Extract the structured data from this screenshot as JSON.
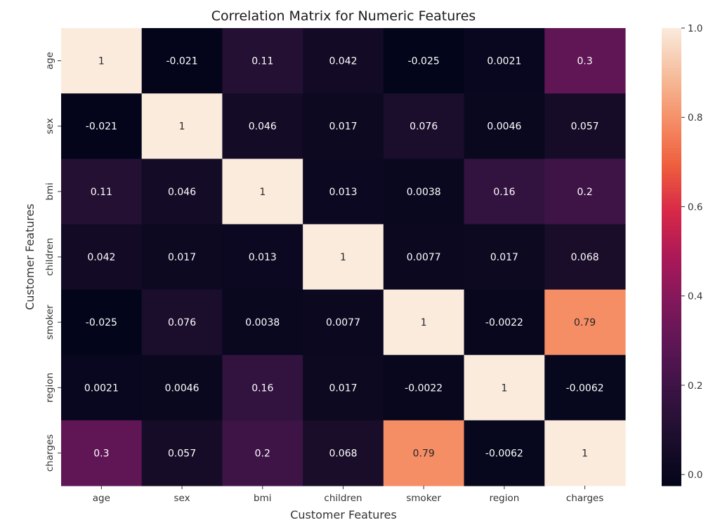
{
  "chart_data": {
    "type": "heatmap",
    "title": "Correlation Matrix for Numeric Features",
    "xlabel": "Customer Features",
    "ylabel": "Customer Features",
    "x_categories": [
      "age",
      "sex",
      "bmi",
      "children",
      "smoker",
      "region",
      "charges"
    ],
    "y_categories": [
      "age",
      "sex",
      "bmi",
      "children",
      "smoker",
      "region",
      "charges"
    ],
    "values": [
      [
        1,
        -0.021,
        0.11,
        0.042,
        -0.025,
        0.0021,
        0.3
      ],
      [
        -0.021,
        1,
        0.046,
        0.017,
        0.076,
        0.0046,
        0.057
      ],
      [
        0.11,
        0.046,
        1,
        0.013,
        0.0038,
        0.16,
        0.2
      ],
      [
        0.042,
        0.017,
        0.013,
        1,
        0.0077,
        0.017,
        0.068
      ],
      [
        -0.025,
        0.076,
        0.0038,
        0.0077,
        1,
        -0.0022,
        0.79
      ],
      [
        0.0021,
        0.0046,
        0.16,
        0.017,
        -0.0022,
        1,
        -0.0062
      ],
      [
        0.3,
        0.057,
        0.2,
        0.068,
        0.79,
        -0.0062,
        1
      ]
    ],
    "annotations": [
      [
        "1",
        "-0.021",
        "0.11",
        "0.042",
        "-0.025",
        "0.0021",
        "0.3"
      ],
      [
        "-0.021",
        "1",
        "0.046",
        "0.017",
        "0.076",
        "0.0046",
        "0.057"
      ],
      [
        "0.11",
        "0.046",
        "1",
        "0.013",
        "0.0038",
        "0.16",
        "0.2"
      ],
      [
        "0.042",
        "0.017",
        "0.013",
        "1",
        "0.0077",
        "0.017",
        "0.068"
      ],
      [
        "-0.025",
        "0.076",
        "0.0038",
        "0.0077",
        "1",
        "-0.0022",
        "0.79"
      ],
      [
        "0.0021",
        "0.0046",
        "0.16",
        "0.017",
        "-0.0022",
        "1",
        "-0.0062"
      ],
      [
        "0.3",
        "0.057",
        "0.2",
        "0.068",
        "0.79",
        "-0.0062",
        "1"
      ]
    ],
    "colorbar": {
      "range": [
        -0.025,
        1.0
      ],
      "ticks": [
        0.0,
        0.2,
        0.4,
        0.6,
        0.8,
        1.0
      ],
      "tick_labels": [
        "0.0",
        "0.2",
        "0.4",
        "0.6",
        "0.8",
        "1.0"
      ],
      "colormap": "rocket"
    },
    "colors": {
      "low": "#03051a",
      "high": "#faebdd"
    }
  }
}
